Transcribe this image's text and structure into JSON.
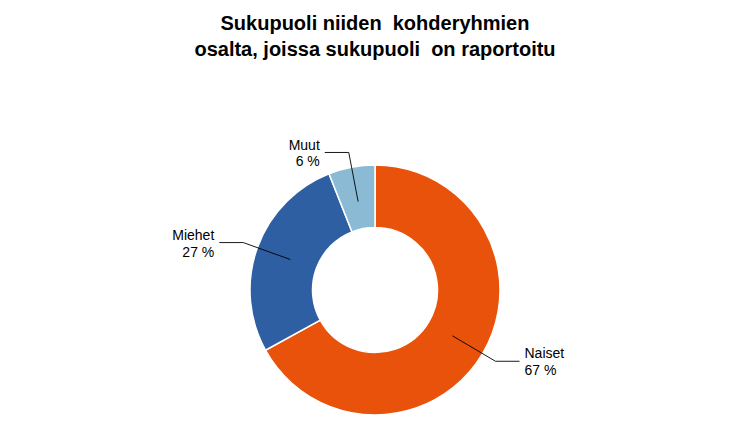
{
  "chart_data": {
    "type": "donut",
    "title": [
      "Sukupuoli niiden  kohderyhmien",
      "osalta, joissa sukupuoli  on raportoitu"
    ],
    "categories": [
      "Naiset",
      "Miehet",
      "Muut"
    ],
    "values": [
      67,
      27,
      6
    ],
    "value_labels": [
      "67 %",
      "27 %",
      "6 %"
    ],
    "colors": [
      "#E8520A",
      "#2E5FA3",
      "#8BBAD4"
    ],
    "data_labels": true
  }
}
